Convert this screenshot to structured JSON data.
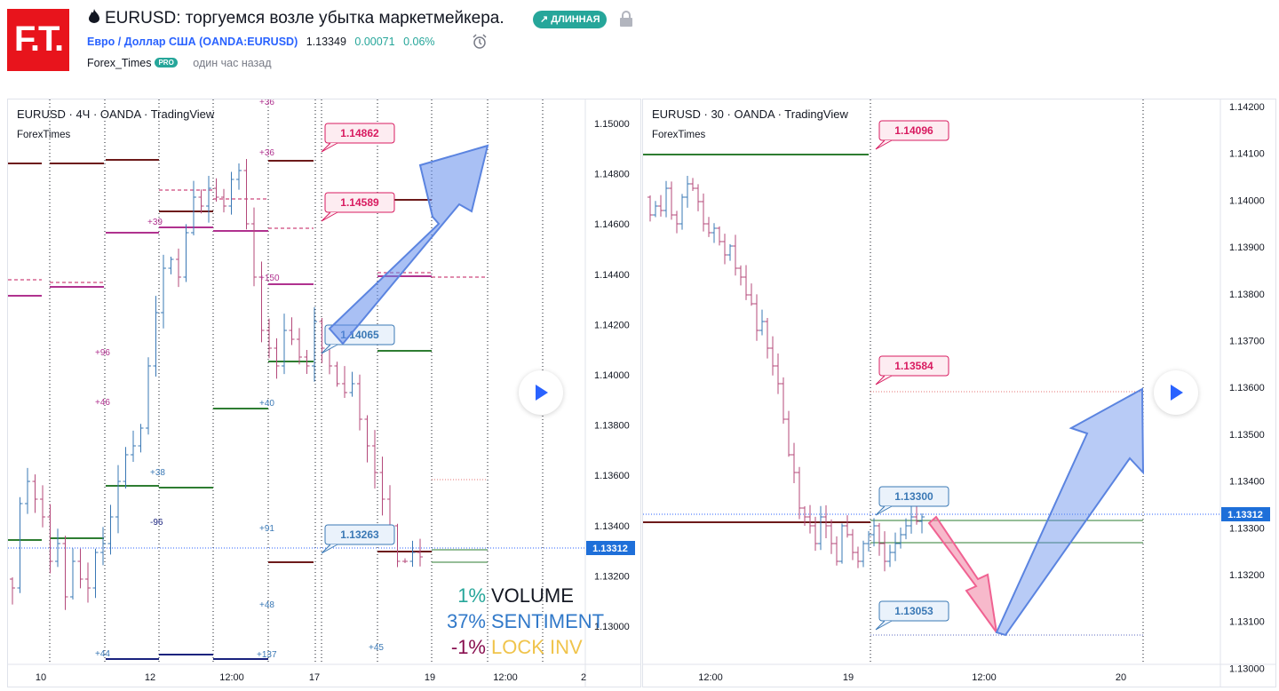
{
  "header": {
    "logo_text": "F.T.",
    "title": "EURUSD: торгуемся возле убытка маркетмейкера.",
    "badge": "↗ ДЛИННАЯ",
    "symbol_link": "Евро / Доллар США (OANDA:EURUSD)",
    "price": "1.13349",
    "change": "0.00071",
    "change_pct": "0.06%",
    "author": "Forex_Times",
    "author_badge": "PRO",
    "published": "один час назад"
  },
  "colors": {
    "up": "#26a69a",
    "down": "#ef5350",
    "accent": "#2962ff",
    "logo": "#e8141c"
  },
  "chart_left": {
    "title": "EURUSD · 4Ч · OANDA · TradingView",
    "watermark": "ForexTimes",
    "price_axis": [
      "1.15000",
      "1.14800",
      "1.14600",
      "1.14400",
      "1.14200",
      "1.14000",
      "1.13800",
      "1.13600",
      "1.13400",
      "1.13200",
      "1.13000"
    ],
    "time_axis": [
      "10",
      "12",
      "12:00",
      "17",
      "19",
      "12:00",
      "2"
    ],
    "current_price": "1.13312",
    "level_labels": [
      "1.14862",
      "1.14589",
      "1.14065",
      "1.13263"
    ],
    "annotations": [
      "+36",
      "+36",
      "+39",
      "+150",
      "+96",
      "+46",
      "+40",
      "+38",
      "-96",
      "+91",
      "+48",
      "+45",
      "+44",
      "+137"
    ],
    "legend": [
      {
        "pct": "1%",
        "label": "VOLUME"
      },
      {
        "pct": "37%",
        "label": "SENTIMENT"
      },
      {
        "pct": "-1%",
        "label": "LOCK INV"
      }
    ]
  },
  "chart_right": {
    "title": "EURUSD · 30 · OANDA · TradingView",
    "watermark": "ForexTimes",
    "price_axis": [
      "1.14200",
      "1.14100",
      "1.14000",
      "1.13900",
      "1.13800",
      "1.13700",
      "1.13600",
      "1.13500",
      "1.13400",
      "1.13300",
      "1.13200",
      "1.13100",
      "1.13000"
    ],
    "time_axis": [
      "12:00",
      "19",
      "12:00",
      "20"
    ],
    "current_price": "1.13312",
    "level_labels": [
      "1.14096",
      "1.13584",
      "1.13300",
      "1.13053"
    ]
  }
}
